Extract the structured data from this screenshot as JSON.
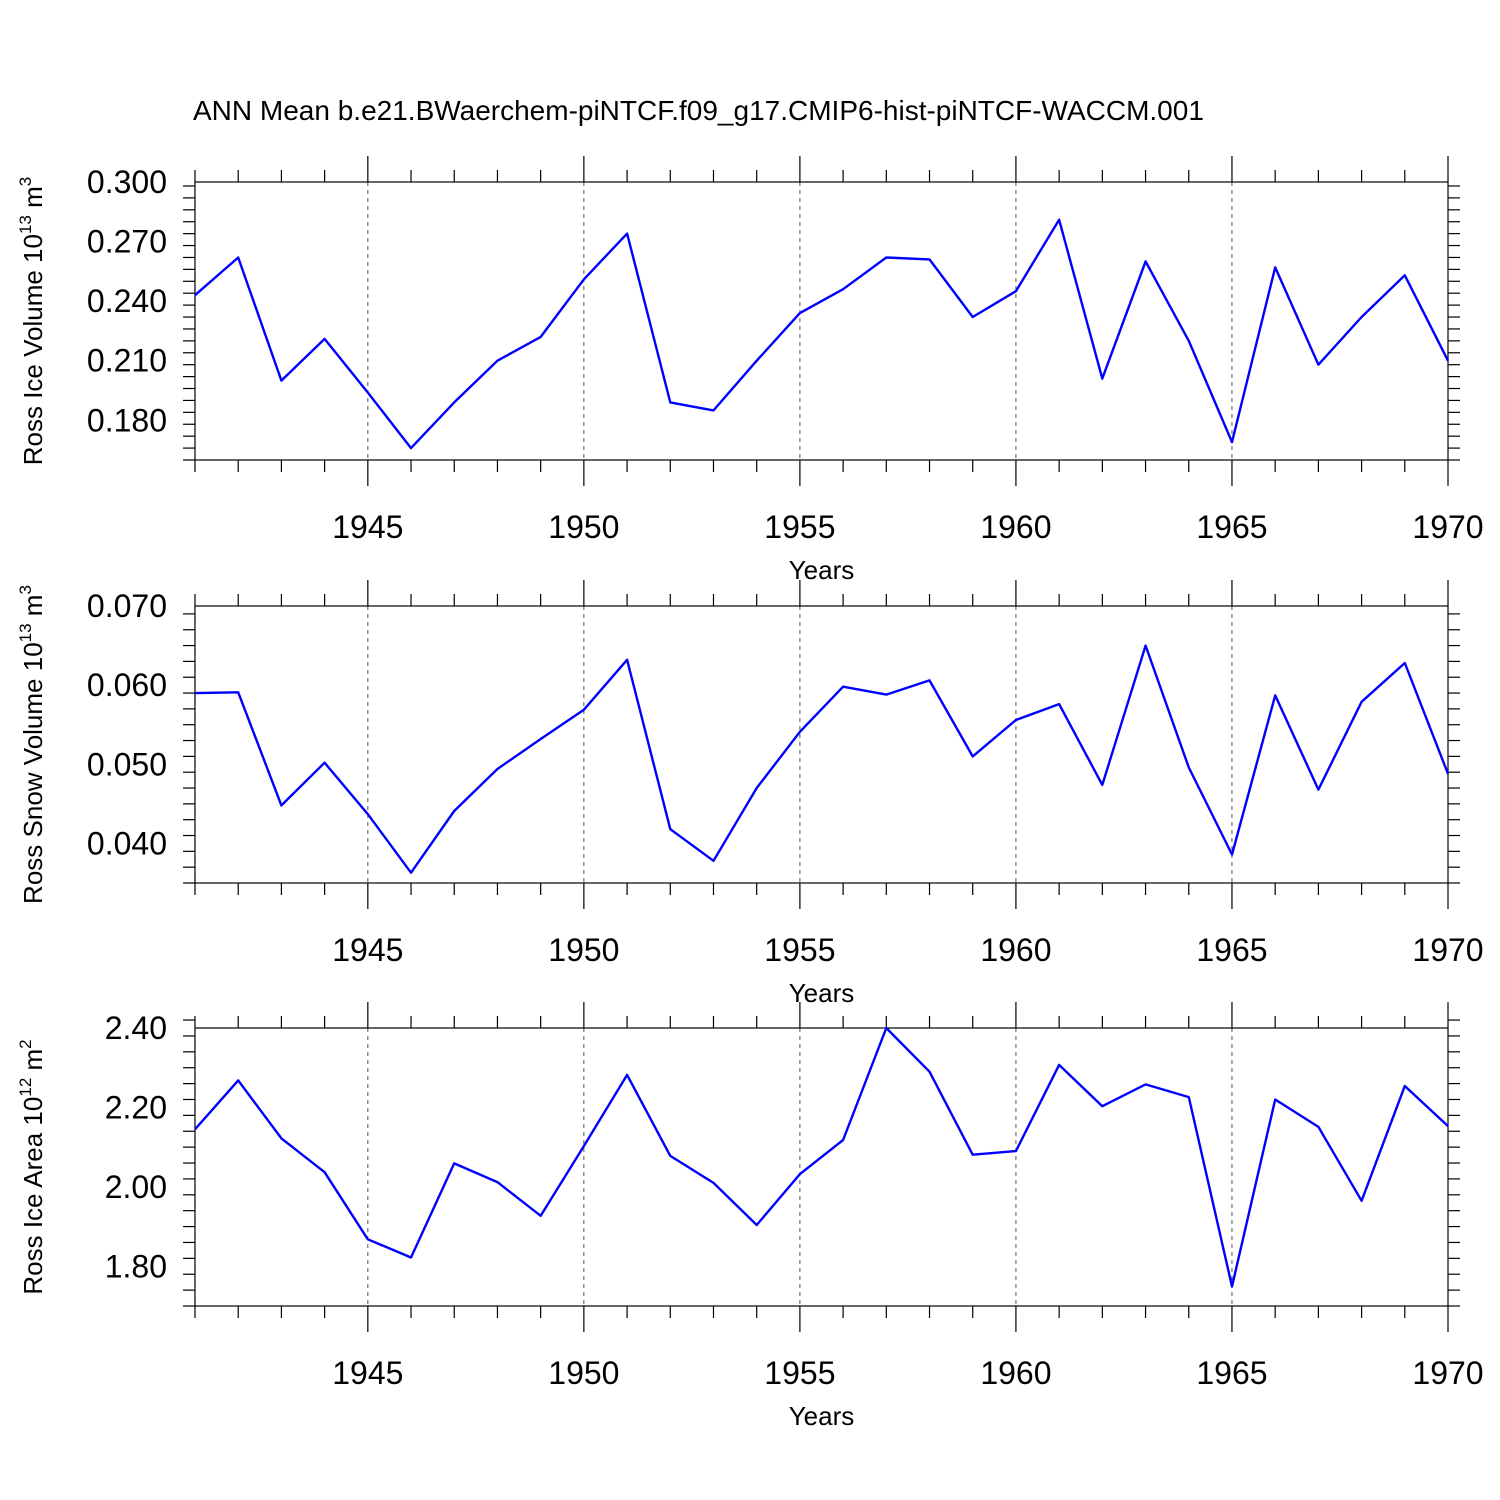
{
  "title": "ANN Mean b.e21.BWaerchem-piNTCF.f09_g17.CMIP6-hist-piNTCF-WACCM.001",
  "line_color": "#0000ff",
  "chart_data": [
    {
      "type": "line",
      "xlabel": "Years",
      "ylabel_main": "Ross Ice Volume 10",
      "ylabel_exp": "13",
      "ylabel_unit": " m",
      "ylabel_unit_exp": "3",
      "xlim": [
        1941,
        1970
      ],
      "ylim": [
        0.16,
        0.3
      ],
      "x_ticks": [
        1945,
        1950,
        1955,
        1960,
        1965,
        1970
      ],
      "y_ticks": [
        0.18,
        0.21,
        0.24,
        0.27,
        0.3
      ],
      "y_tick_labels": [
        "0.180",
        "0.210",
        "0.240",
        "0.270",
        "0.300"
      ],
      "grid": "dashed vertical at labeled x ticks",
      "x": [
        1941,
        1942,
        1943,
        1944,
        1945,
        1946,
        1947,
        1948,
        1949,
        1950,
        1951,
        1952,
        1953,
        1954,
        1955,
        1956,
        1957,
        1958,
        1959,
        1960,
        1961,
        1962,
        1963,
        1964,
        1965,
        1966,
        1967,
        1968,
        1969,
        1970
      ],
      "values": [
        0.243,
        0.262,
        0.2,
        0.221,
        0.194,
        0.166,
        0.189,
        0.21,
        0.222,
        0.251,
        0.274,
        0.189,
        0.185,
        0.21,
        0.234,
        0.246,
        0.262,
        0.261,
        0.232,
        0.245,
        0.281,
        0.201,
        0.26,
        0.22,
        0.169,
        0.257,
        0.208,
        0.232,
        0.253,
        0.21
      ]
    },
    {
      "type": "line",
      "xlabel": "Years",
      "ylabel_main": "Ross Snow Volume 10",
      "ylabel_exp": "13",
      "ylabel_unit": " m",
      "ylabel_unit_exp": "3",
      "xlim": [
        1941,
        1970
      ],
      "ylim": [
        0.035,
        0.07
      ],
      "x_ticks": [
        1945,
        1950,
        1955,
        1960,
        1965,
        1970
      ],
      "y_ticks": [
        0.04,
        0.05,
        0.06,
        0.07
      ],
      "y_tick_labels": [
        "0.040",
        "0.050",
        "0.060",
        "0.070"
      ],
      "grid": "dashed vertical at labeled x ticks",
      "x": [
        1941,
        1942,
        1943,
        1944,
        1945,
        1946,
        1947,
        1948,
        1949,
        1950,
        1951,
        1952,
        1953,
        1954,
        1955,
        1956,
        1957,
        1958,
        1959,
        1960,
        1961,
        1962,
        1963,
        1964,
        1965,
        1966,
        1967,
        1968,
        1969,
        1970
      ],
      "values": [
        0.059,
        0.0591,
        0.0448,
        0.0502,
        0.0437,
        0.0363,
        0.0441,
        0.0494,
        0.0532,
        0.0569,
        0.0632,
        0.0418,
        0.0378,
        0.047,
        0.0541,
        0.0598,
        0.0588,
        0.0606,
        0.051,
        0.0556,
        0.0576,
        0.0474,
        0.065,
        0.0496,
        0.0386,
        0.0587,
        0.0468,
        0.0579,
        0.0628,
        0.0488
      ]
    },
    {
      "type": "line",
      "xlabel": "Years",
      "ylabel_main": "Ross Ice Area 10",
      "ylabel_exp": "12",
      "ylabel_unit": " m",
      "ylabel_unit_exp": "2",
      "xlim": [
        1941,
        1970
      ],
      "ylim": [
        1.7,
        2.4
      ],
      "x_ticks": [
        1945,
        1950,
        1955,
        1960,
        1965,
        1970
      ],
      "y_ticks": [
        1.8,
        2.0,
        2.2,
        2.4
      ],
      "y_tick_labels": [
        "1.80",
        "2.00",
        "2.20",
        "2.40"
      ],
      "grid": "dashed vertical at labeled x ticks",
      "x": [
        1941,
        1942,
        1943,
        1944,
        1945,
        1946,
        1947,
        1948,
        1949,
        1950,
        1951,
        1952,
        1953,
        1954,
        1955,
        1956,
        1957,
        1958,
        1959,
        1960,
        1961,
        1962,
        1963,
        1964,
        1965,
        1966,
        1967,
        1968,
        1969,
        1970
      ],
      "values": [
        2.145,
        2.268,
        2.122,
        2.037,
        1.868,
        1.822,
        2.059,
        2.012,
        1.927,
        2.103,
        2.282,
        2.078,
        2.01,
        1.904,
        2.032,
        2.118,
        2.4,
        2.29,
        2.081,
        2.09,
        2.307,
        2.203,
        2.258,
        2.226,
        1.749,
        2.22,
        2.151,
        1.965,
        2.254,
        2.153
      ]
    }
  ]
}
